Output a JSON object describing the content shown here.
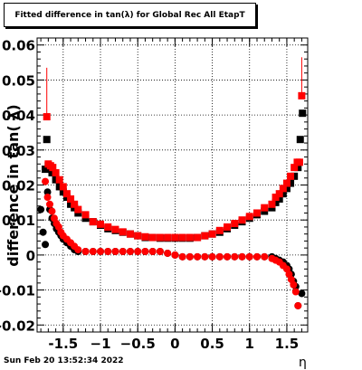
{
  "title": "Fitted difference in tan(λ) for Global Rec All EtapT",
  "timestamp": "Sun Feb 20 13:52:34 2022",
  "chart_data": {
    "type": "scatter",
    "xlabel": "η",
    "ylabel": "difference in tan( λ)",
    "xlim": [
      -1.85,
      1.78
    ],
    "ylim": [
      -0.022,
      0.062
    ],
    "xticks": [
      -1.5,
      -1,
      -0.5,
      0,
      0.5,
      1,
      1.5
    ],
    "xtick_labels": [
      "-1.5",
      "−1",
      "−0.5",
      "0",
      "0.5",
      "1",
      "1.5"
    ],
    "yticks": [
      -0.02,
      -0.01,
      0,
      0.01,
      0.02,
      0.03,
      0.04,
      0.05,
      0.06
    ],
    "ytick_labels": [
      "-0.02",
      "-0.01",
      "0",
      "0.01",
      "0.02",
      "0.03",
      "0.04",
      "0.05",
      "0.06"
    ],
    "grid": true,
    "series": [
      {
        "marker": "circle",
        "color": "#000000",
        "x": [
          -1.8,
          -1.77,
          -1.74,
          -1.71,
          -1.68,
          -1.65,
          -1.62,
          -1.59,
          -1.56,
          -1.53,
          -1.5,
          -1.45,
          -1.4,
          -1.35,
          -1.3,
          -1.2,
          -1.1,
          -1.0,
          -0.9,
          -0.8,
          -0.7,
          -0.6,
          -0.5,
          -0.4,
          -0.3,
          -0.2,
          -0.1,
          0.0,
          0.1,
          0.2,
          0.3,
          0.4,
          0.5,
          0.6,
          0.7,
          0.8,
          0.9,
          1.0,
          1.1,
          1.2,
          1.3,
          1.35,
          1.4,
          1.45,
          1.5,
          1.53,
          1.56,
          1.59,
          1.62,
          1.65,
          1.7
        ],
        "y": [
          0.013,
          0.0065,
          0.003,
          0.018,
          0.013,
          0.0105,
          0.009,
          0.0075,
          0.0065,
          0.0055,
          0.0045,
          0.0035,
          0.0025,
          0.0015,
          0.001,
          0.001,
          0.001,
          0.001,
          0.001,
          0.001,
          0.001,
          0.001,
          0.001,
          0.001,
          0.001,
          0.001,
          0.0005,
          0.0,
          -0.0005,
          -0.0005,
          -0.0005,
          -0.0005,
          -0.0005,
          -0.0005,
          -0.0005,
          -0.0005,
          -0.0005,
          -0.0005,
          -0.0005,
          -0.0005,
          -0.0005,
          -0.001,
          -0.0015,
          -0.002,
          -0.003,
          -0.004,
          -0.0055,
          -0.0075,
          -0.009,
          -0.0145,
          -0.011
        ]
      },
      {
        "marker": "circle",
        "color": "#ff0000",
        "x": [
          -1.74,
          -1.71,
          -1.68,
          -1.65,
          -1.62,
          -1.59,
          -1.56,
          -1.53,
          -1.5,
          -1.45,
          -1.4,
          -1.35,
          -1.3,
          -1.2,
          -1.1,
          -1.0,
          -0.9,
          -0.8,
          -0.7,
          -0.6,
          -0.5,
          -0.4,
          -0.3,
          -0.2,
          -0.1,
          0.0,
          0.1,
          0.2,
          0.3,
          0.4,
          0.5,
          0.6,
          0.7,
          0.8,
          0.9,
          1.0,
          1.1,
          1.2,
          1.3,
          1.35,
          1.4,
          1.45,
          1.5,
          1.53,
          1.56,
          1.59,
          1.62,
          1.65
        ],
        "y": [
          0.021,
          0.0165,
          0.0145,
          0.0125,
          0.0105,
          0.009,
          0.008,
          0.0065,
          0.0055,
          0.0045,
          0.0035,
          0.0025,
          0.0015,
          0.001,
          0.001,
          0.001,
          0.001,
          0.001,
          0.001,
          0.001,
          0.001,
          0.001,
          0.001,
          0.001,
          0.0005,
          0.0,
          -0.0005,
          -0.0005,
          -0.0005,
          -0.0005,
          -0.0005,
          -0.0005,
          -0.0005,
          -0.0005,
          -0.0005,
          -0.0005,
          -0.0005,
          -0.0005,
          -0.001,
          -0.0015,
          -0.002,
          -0.003,
          -0.004,
          -0.0055,
          -0.007,
          -0.0085,
          -0.0105,
          -0.0145
        ]
      },
      {
        "marker": "square",
        "color": "#000000",
        "x": [
          -1.74,
          -1.72,
          -1.7,
          -1.65,
          -1.6,
          -1.55,
          -1.5,
          -1.45,
          -1.4,
          -1.35,
          -1.3,
          -1.2,
          -1.1,
          -1.0,
          -0.9,
          -0.8,
          -0.7,
          -0.6,
          -0.5,
          -0.4,
          -0.3,
          -0.2,
          -0.1,
          0.0,
          0.1,
          0.2,
          0.3,
          0.4,
          0.5,
          0.6,
          0.7,
          0.8,
          0.9,
          1.0,
          1.1,
          1.2,
          1.3,
          1.35,
          1.4,
          1.45,
          1.5,
          1.55,
          1.6,
          1.65,
          1.68,
          1.71
        ],
        "y": [
          0.0245,
          0.033,
          0.0255,
          0.0235,
          0.0215,
          0.0195,
          0.018,
          0.0165,
          0.0145,
          0.0135,
          0.012,
          0.0105,
          0.0095,
          0.0085,
          0.0075,
          0.007,
          0.0065,
          0.006,
          0.0055,
          0.005,
          0.005,
          0.0048,
          0.0048,
          0.0048,
          0.0048,
          0.0048,
          0.005,
          0.0055,
          0.006,
          0.0065,
          0.0075,
          0.0085,
          0.0095,
          0.0105,
          0.0115,
          0.0125,
          0.0135,
          0.015,
          0.016,
          0.0175,
          0.019,
          0.0205,
          0.0225,
          0.025,
          0.033,
          0.0405
        ]
      },
      {
        "marker": "square",
        "color": "#ff0000",
        "x": [
          -1.72,
          -1.7,
          -1.67,
          -1.64,
          -1.6,
          -1.55,
          -1.5,
          -1.45,
          -1.4,
          -1.35,
          -1.3,
          -1.2,
          -1.1,
          -1.0,
          -0.9,
          -0.8,
          -0.7,
          -0.6,
          -0.5,
          -0.4,
          -0.3,
          -0.2,
          -0.1,
          0.0,
          0.1,
          0.2,
          0.3,
          0.4,
          0.5,
          0.6,
          0.7,
          0.8,
          0.9,
          1.0,
          1.1,
          1.2,
          1.3,
          1.35,
          1.4,
          1.45,
          1.5,
          1.55,
          1.6,
          1.64,
          1.67,
          1.7
        ],
        "y": [
          0.0395,
          0.026,
          0.0255,
          0.025,
          0.0235,
          0.0215,
          0.0195,
          0.0175,
          0.016,
          0.0145,
          0.013,
          0.0115,
          0.0095,
          0.0088,
          0.008,
          0.0073,
          0.0066,
          0.006,
          0.0055,
          0.0052,
          0.005,
          0.005,
          0.005,
          0.005,
          0.005,
          0.005,
          0.005,
          0.0055,
          0.006,
          0.007,
          0.008,
          0.009,
          0.01,
          0.011,
          0.012,
          0.0135,
          0.0145,
          0.0165,
          0.0175,
          0.019,
          0.0205,
          0.0225,
          0.025,
          0.0265,
          0.0265,
          0.0455
        ]
      }
    ],
    "error_bars": [
      {
        "x": -1.72,
        "y": 0.0395,
        "low": 0.0,
        "high": 0.0535,
        "color": "#ff0000"
      },
      {
        "x": 1.7,
        "y": 0.0455,
        "low": 0.0,
        "high": 0.0565,
        "color": "#ff0000"
      }
    ]
  }
}
